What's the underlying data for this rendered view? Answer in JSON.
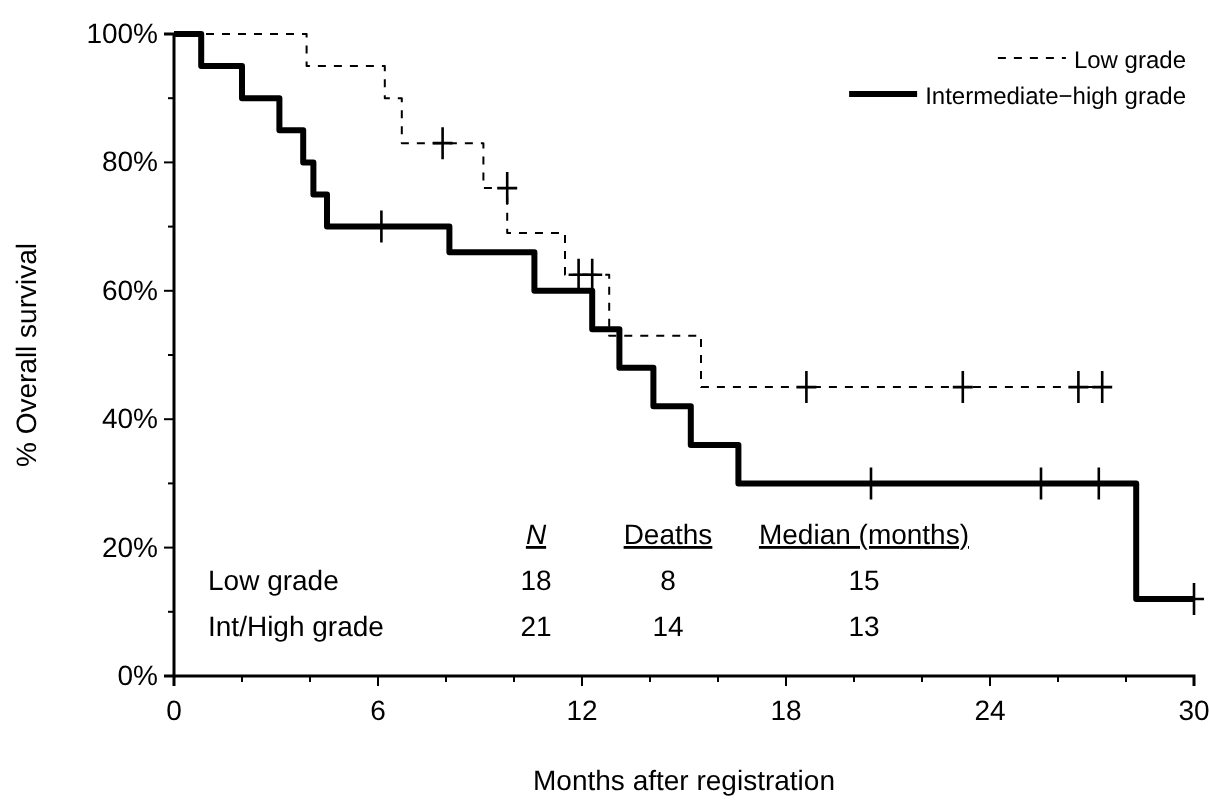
{
  "chart_data": {
    "type": "step",
    "xlabel": "Months after registration",
    "ylabel": "% Overall survival",
    "xlim": [
      0,
      30
    ],
    "ylim": [
      0,
      100
    ],
    "xticks": [
      0,
      {
        "value": 2,
        "label": null
      },
      {
        "value": 4,
        "label": null
      },
      6,
      {
        "value": 8,
        "label": null
      },
      {
        "value": 10,
        "label": null
      },
      12,
      {
        "value": 14,
        "label": null
      },
      {
        "value": 16,
        "label": null
      },
      18,
      {
        "value": 20,
        "label": null
      },
      {
        "value": 22,
        "label": null
      },
      24,
      {
        "value": 26,
        "label": null
      },
      {
        "value": 28,
        "label": null
      },
      30
    ],
    "yticks": [
      {
        "value": 0,
        "label": "0%"
      },
      {
        "value": 10,
        "label": null
      },
      {
        "value": 20,
        "label": "20%"
      },
      {
        "value": 30,
        "label": null
      },
      {
        "value": 40,
        "label": "40%"
      },
      {
        "value": 50,
        "label": null
      },
      {
        "value": 60,
        "label": "60%"
      },
      {
        "value": 70,
        "label": null
      },
      {
        "value": 80,
        "label": "80%"
      },
      {
        "value": 90,
        "label": null
      },
      {
        "value": 100,
        "label": "100%"
      }
    ],
    "grid": false,
    "legend": "top right",
    "series": [
      {
        "name": "Low grade",
        "line_style": "dashed",
        "color": "#000000",
        "x": [
          0,
          3.9,
          6.2,
          6.7,
          9.1,
          9.8,
          11.5,
          12.8,
          15.5,
          27.6
        ],
        "values": [
          100,
          95,
          90,
          83,
          76,
          69,
          62.5,
          53,
          45,
          45
        ]
      },
      {
        "name": "Intermediate−high grade",
        "line_style": "solid",
        "color": "#000000",
        "x": [
          0,
          0.8,
          2.0,
          3.1,
          3.8,
          4.1,
          4.5,
          8.1,
          10.6,
          12.3,
          13.1,
          14.1,
          15.2,
          16.6,
          28.3,
          30
        ],
        "values": [
          100,
          95,
          90,
          85,
          80,
          75,
          70,
          66,
          60,
          54,
          48,
          42,
          36,
          30,
          12,
          12
        ]
      },
      {
        "type": "scatter",
        "marker": "cross",
        "color": "#000000",
        "x": [
          7.9,
          9.8,
          11.9,
          12.3,
          18.6,
          23.2,
          26.6,
          27.3
        ],
        "values": [
          83,
          76,
          62.5,
          62.5,
          45,
          45,
          45,
          45
        ]
      },
      {
        "type": "scatter",
        "marker": "cross",
        "color": "#000000",
        "x": [
          6.1,
          20.5,
          25.5,
          27.2,
          30
        ],
        "values": [
          70,
          30,
          30,
          30,
          12
        ]
      }
    ],
    "annotations": [
      "N",
      "Deaths",
      "Median (months)",
      "Low grade",
      "18",
      "8",
      "15",
      "Int/High grade",
      "21",
      "14",
      "13"
    ]
  }
}
